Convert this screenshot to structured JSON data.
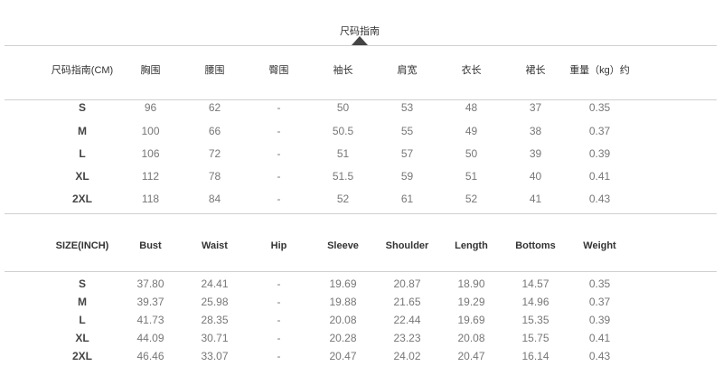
{
  "title": "尺码指南",
  "cm_table": {
    "headers": [
      "尺码指南(CM)",
      "胸围",
      "腰围",
      "臀围",
      "袖长",
      "肩宽",
      "衣长",
      "裙长",
      "重量（kg）约"
    ],
    "rows": [
      [
        "S",
        "96",
        "62",
        "-",
        "50",
        "53",
        "48",
        "37",
        "0.35"
      ],
      [
        "M",
        "100",
        "66",
        "-",
        "50.5",
        "55",
        "49",
        "38",
        "0.37"
      ],
      [
        "L",
        "106",
        "72",
        "-",
        "51",
        "57",
        "50",
        "39",
        "0.39"
      ],
      [
        "XL",
        "112",
        "78",
        "-",
        "51.5",
        "59",
        "51",
        "40",
        "0.41"
      ],
      [
        "2XL",
        "118",
        "84",
        "-",
        "52",
        "61",
        "52",
        "41",
        "0.43"
      ]
    ]
  },
  "inch_table": {
    "headers": [
      "SIZE(INCH)",
      "Bust",
      "Waist",
      "Hip",
      "Sleeve",
      "Shoulder",
      "Length",
      "Bottoms",
      "Weight"
    ],
    "rows": [
      [
        "S",
        "37.80",
        "24.41",
        "-",
        "19.69",
        "20.87",
        "18.90",
        "14.57",
        "0.35"
      ],
      [
        "M",
        "39.37",
        "25.98",
        "-",
        "19.88",
        "21.65",
        "19.29",
        "14.96",
        "0.37"
      ],
      [
        "L",
        "41.73",
        "28.35",
        "-",
        "20.08",
        "22.44",
        "19.69",
        "15.35",
        "0.39"
      ],
      [
        "XL",
        "44.09",
        "30.71",
        "-",
        "20.28",
        "23.23",
        "20.08",
        "15.75",
        "0.41"
      ],
      [
        "2XL",
        "46.46",
        "33.07",
        "-",
        "20.47",
        "24.02",
        "20.47",
        "16.14",
        "0.43"
      ]
    ]
  }
}
